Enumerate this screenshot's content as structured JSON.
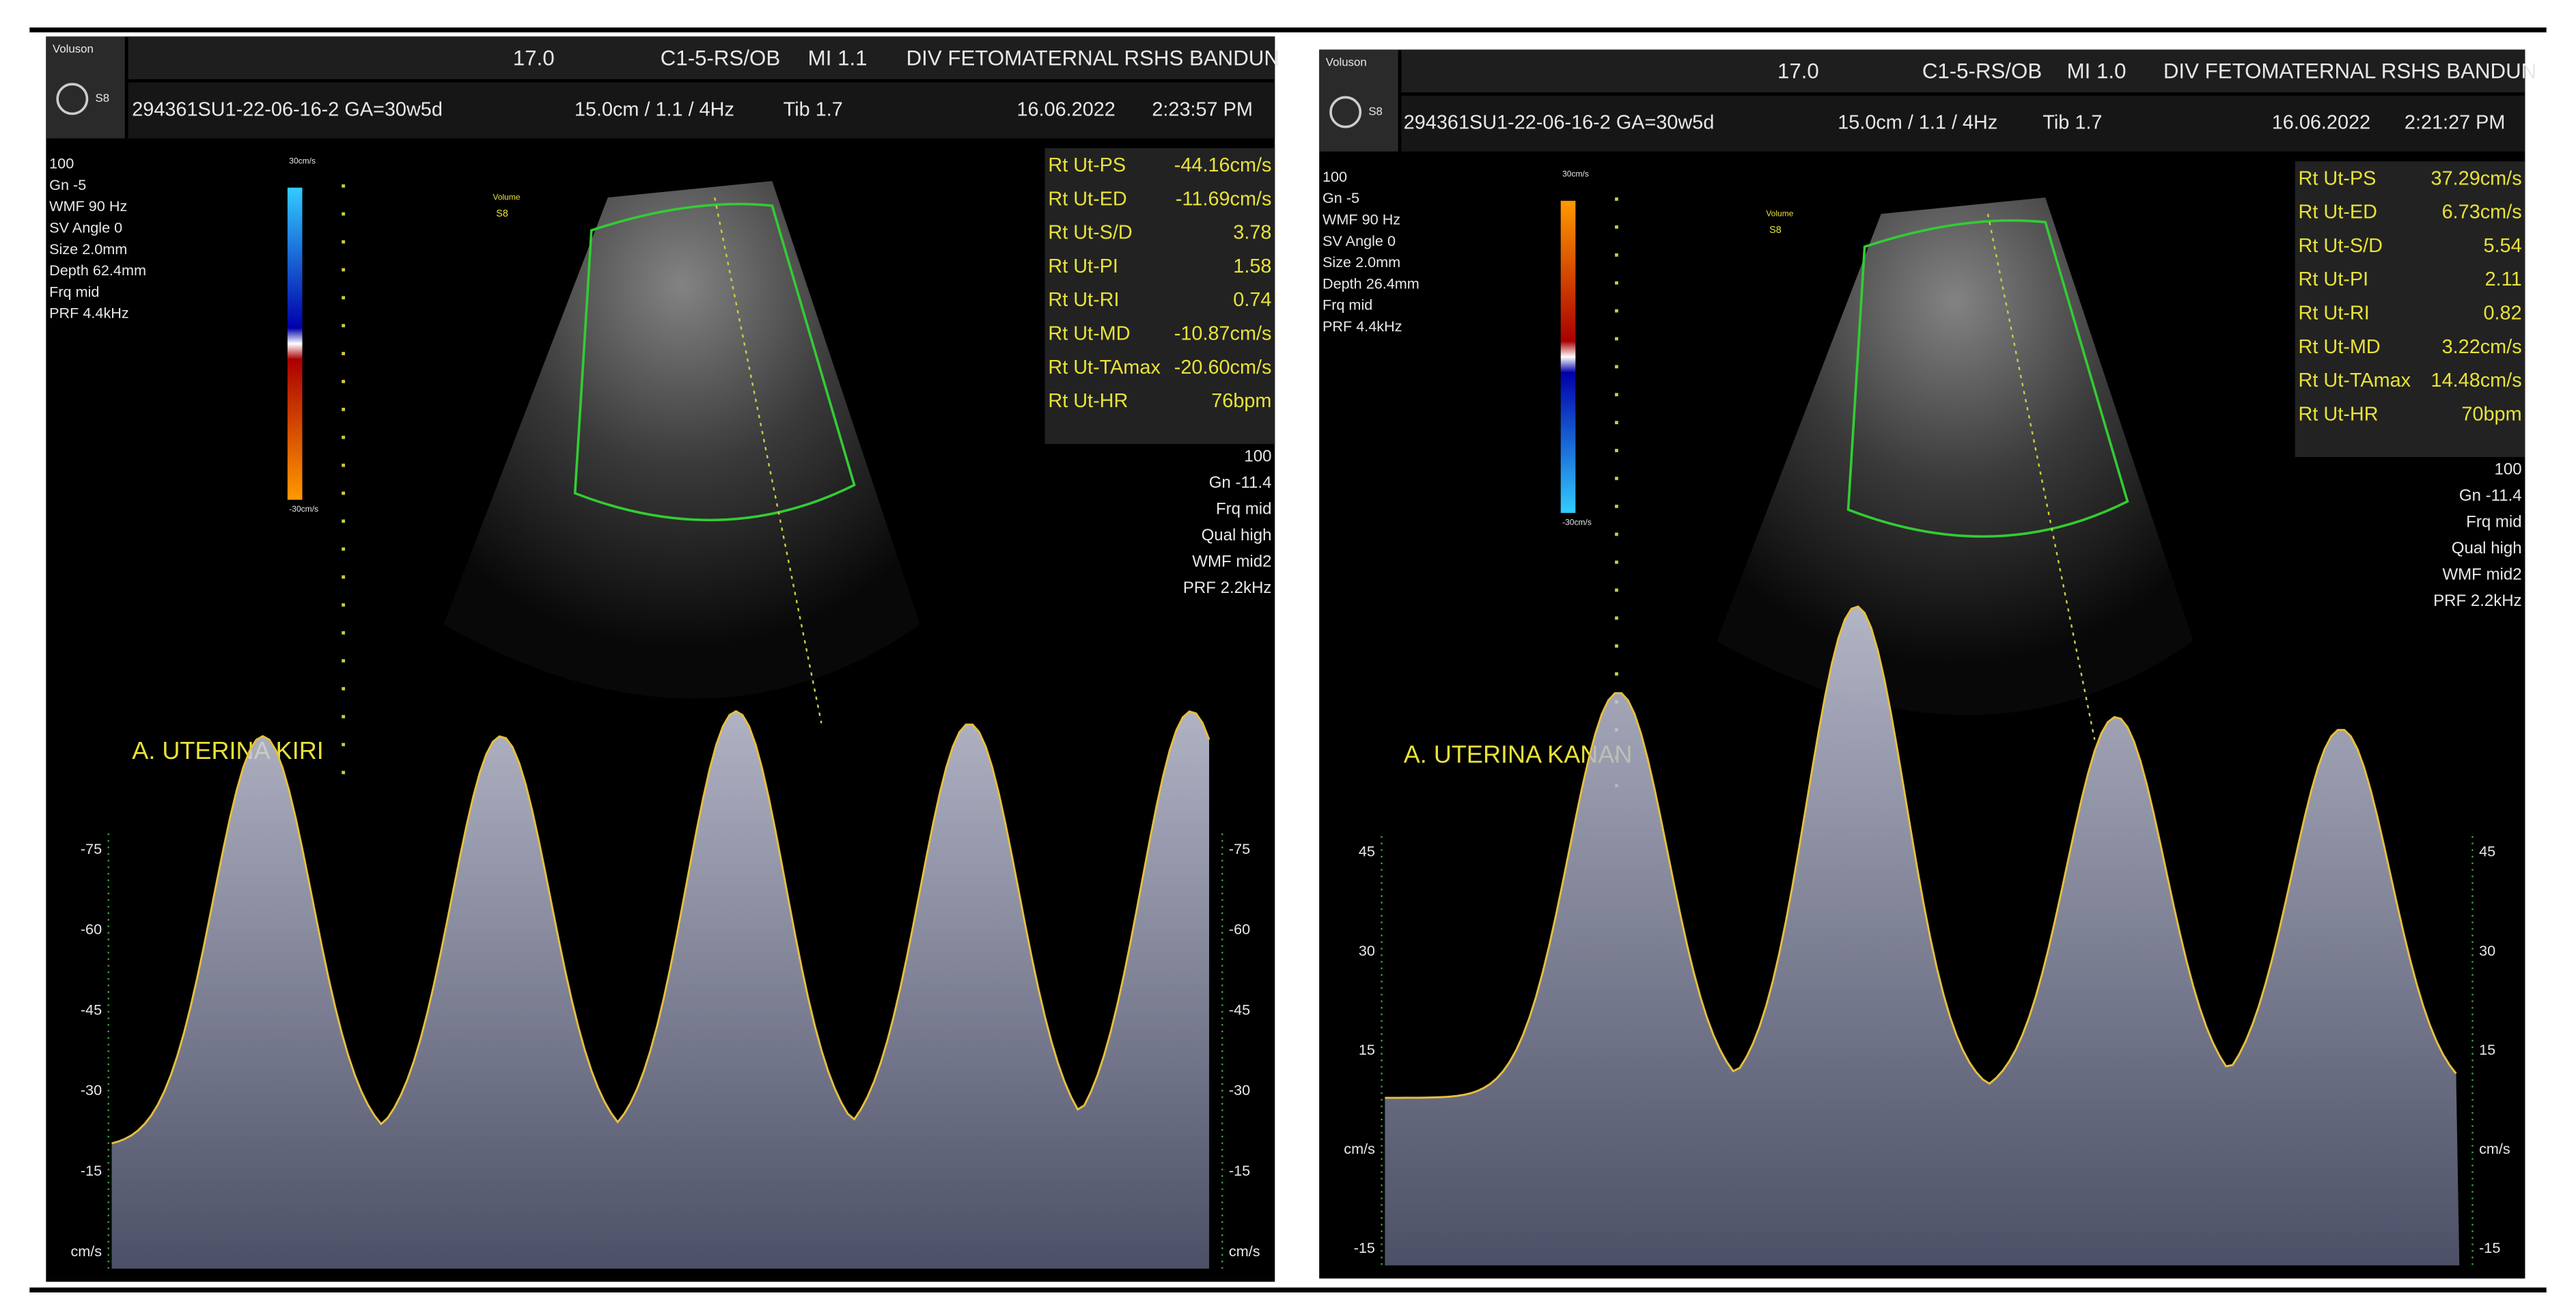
{
  "panels": [
    {
      "brand": "Voluson",
      "model": "S8",
      "header": [
        "17.0",
        "C1-5-RS/OB",
        "MI 1.1",
        "DIV FETOMATERNAL RSHS BANDUN"
      ],
      "subheader": [
        "294361SU1-22-06-16-2 GA=30w5d",
        "15.0cm / 1.1 / 4Hz",
        "Tib 1.7",
        "16.06.2022",
        "2:23:57 PM"
      ],
      "info": [
        "100",
        "Gn -5",
        "WMF 90 Hz",
        "SV Angle 0",
        "Size 2.0mm",
        "Depth 62.4mm",
        "Frq mid",
        "PRF 4.4kHz"
      ],
      "scale": [
        "30cm/s",
        "-30cm/s"
      ],
      "probe": [
        "Volume",
        "S8"
      ],
      "measurements": [
        {
          "label": "Rt Ut-PS",
          "value": "-44.16cm/s"
        },
        {
          "label": "Rt Ut-ED",
          "value": "-11.69cm/s"
        },
        {
          "label": "Rt Ut-S/D",
          "value": "3.78"
        },
        {
          "label": "Rt Ut-PI",
          "value": "1.58"
        },
        {
          "label": "Rt Ut-RI",
          "value": "0.74"
        },
        {
          "label": "Rt Ut-MD",
          "value": "-10.87cm/s"
        },
        {
          "label": "Rt Ut-TAmax",
          "value": "-20.60cm/s"
        },
        {
          "label": "Rt Ut-HR",
          "value": "76bpm"
        }
      ],
      "doppler_info": [
        "100",
        "Gn -11.4",
        "Frq mid",
        "Qual high",
        "WMF mid2",
        "PRF 2.2kHz"
      ],
      "label": "A. UTERINA KIRI",
      "axis": [
        "-75",
        "-60",
        "-45",
        "-30",
        "-15",
        "cm/s"
      ]
    },
    {
      "brand": "Voluson",
      "model": "S8",
      "header": [
        "17.0",
        "C1-5-RS/OB",
        "MI 1.0",
        "DIV FETOMATERNAL RSHS BANDUN"
      ],
      "subheader": [
        "294361SU1-22-06-16-2 GA=30w5d",
        "15.0cm / 1.1 / 4Hz",
        "Tib 1.7",
        "16.06.2022",
        "2:21:27 PM"
      ],
      "info": [
        "100",
        "Gn -5",
        "WMF 90 Hz",
        "SV Angle 0",
        "Size 2.0mm",
        "Depth 26.4mm",
        "Frq mid",
        "PRF 4.4kHz"
      ],
      "scale": [
        "30cm/s",
        "-30cm/s"
      ],
      "probe": [
        "Volume",
        "S8"
      ],
      "measurements": [
        {
          "label": "Rt Ut-PS",
          "value": "37.29cm/s"
        },
        {
          "label": "Rt Ut-ED",
          "value": "6.73cm/s"
        },
        {
          "label": "Rt Ut-S/D",
          "value": "5.54"
        },
        {
          "label": "Rt Ut-PI",
          "value": "2.11"
        },
        {
          "label": "Rt Ut-RI",
          "value": "0.82"
        },
        {
          "label": "Rt Ut-MD",
          "value": "3.22cm/s"
        },
        {
          "label": "Rt Ut-TAmax",
          "value": "14.48cm/s"
        },
        {
          "label": "Rt Ut-HR",
          "value": "70bpm"
        }
      ],
      "doppler_info": [
        "100",
        "Gn -11.4",
        "Frq mid",
        "Qual high",
        "WMF mid2",
        "PRF 2.2kHz"
      ],
      "label": "A. UTERINA KANAN",
      "axis": [
        "45",
        "30",
        "15",
        "cm/s",
        "-15"
      ]
    }
  ]
}
